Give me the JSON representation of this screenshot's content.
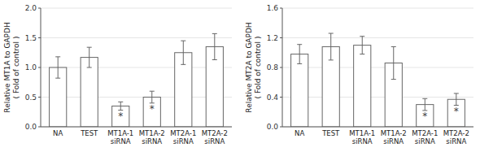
{
  "chart_data": [
    {
      "type": "bar",
      "ylabel": "Relative MT1A to GAPDH\n( Fold of control )",
      "categories": [
        "NA",
        "TEST",
        "MT1A-1\nsiRNA",
        "MT1A-2\nsiRNA",
        "MT2A-1\nsiRNA",
        "MT2A-2\nsiRNA"
      ],
      "values": [
        1.0,
        1.17,
        0.35,
        0.5,
        1.25,
        1.35
      ],
      "errors": [
        0.18,
        0.17,
        0.07,
        0.1,
        0.2,
        0.22
      ],
      "annotations": [
        {
          "text": "*",
          "category": "MT1A-1\nsiRNA"
        },
        {
          "text": "*",
          "category": "MT1A-2\nsiRNA"
        }
      ],
      "color": "#ffffff",
      "ylim": [
        0,
        2.0
      ],
      "yticks": [
        {
          "value": 0.0,
          "label": "0.0"
        },
        0.5,
        {
          "value": 1.0,
          "label": "1.0"
        },
        1.5,
        {
          "value": 2.0,
          "label": "2.0"
        }
      ]
    },
    {
      "type": "bar",
      "ylabel": "Relative MT2A to GAPDH\n( Fold of control )",
      "categories": [
        "NA",
        "TEST",
        "MT1A-1\nsiRNA",
        "MT1A-2\nsiRNA",
        "MT2A-1\nsiRNA",
        "MT2A-2\nsiRNA"
      ],
      "values": [
        0.98,
        1.08,
        1.1,
        0.86,
        0.3,
        0.37
      ],
      "errors": [
        0.13,
        0.18,
        0.12,
        0.22,
        0.08,
        0.08
      ],
      "annotations": [
        {
          "text": "*",
          "category": "MT2A-1\nsiRNA"
        },
        {
          "text": "*",
          "category": "MT2A-2\nsiRNA"
        }
      ],
      "color": "#ffffff",
      "ylim": [
        0,
        1.6
      ],
      "yticks": [
        {
          "value": 0.0,
          "label": "0.0"
        },
        0.4,
        0.8,
        1.2,
        1.6
      ]
    }
  ]
}
